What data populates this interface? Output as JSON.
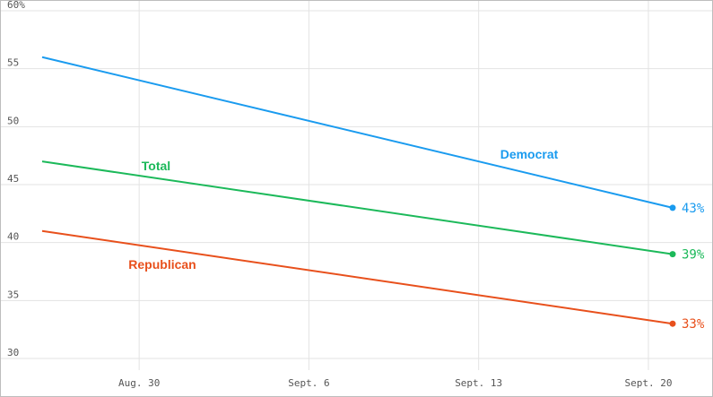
{
  "chart_data": {
    "type": "line",
    "title": "",
    "xlabel": "",
    "ylabel": "",
    "x": [
      "Aug. 26",
      "Sept. 21"
    ],
    "x_ticks": [
      "Aug. 30",
      "Sept. 6",
      "Sept. 13",
      "Sept. 20"
    ],
    "y_ticks": [
      "30",
      "35",
      "40",
      "45",
      "50",
      "55",
      "60%"
    ],
    "ylim": [
      30,
      60
    ],
    "grid": true,
    "legend": "inline labels",
    "series": [
      {
        "name": "Democrat",
        "values": [
          56,
          43
        ],
        "color": "#1a9bef",
        "end_label": "43%"
      },
      {
        "name": "Total",
        "values": [
          47,
          39
        ],
        "color": "#1cb95a",
        "end_label": "39%"
      },
      {
        "name": "Republican",
        "values": [
          41,
          33
        ],
        "color": "#e8501c",
        "end_label": "33%"
      }
    ]
  }
}
